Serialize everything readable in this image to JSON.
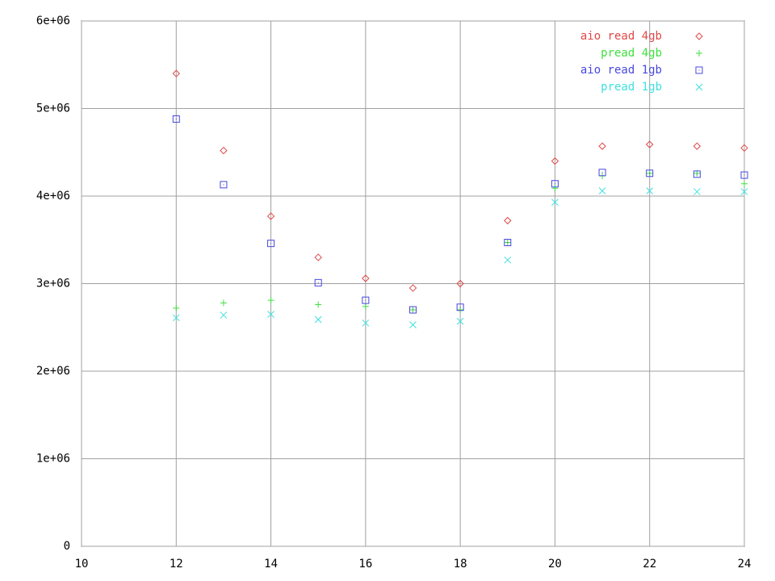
{
  "chart_data": {
    "type": "scatter",
    "x": [
      12,
      13,
      14,
      15,
      16,
      17,
      18,
      19,
      20,
      21,
      22,
      23,
      24
    ],
    "xlim": [
      10,
      24
    ],
    "xticks": [
      10,
      12,
      14,
      16,
      18,
      20,
      22,
      24
    ],
    "ylim": [
      0,
      6000000
    ],
    "yticks": [
      0,
      {
        "value": 1000000,
        "label": "1e+06"
      },
      {
        "value": 2000000,
        "label": "2e+06"
      },
      {
        "value": 3000000,
        "label": "3e+06"
      },
      {
        "value": 4000000,
        "label": "4e+06"
      },
      {
        "value": 5000000,
        "label": "5e+06"
      },
      {
        "value": 6000000,
        "label": "6e+06"
      }
    ],
    "grid": true,
    "legend": "top-right",
    "series": [
      {
        "name": "aio read 4gb",
        "color": "#e04848",
        "marker": "diamond",
        "values": [
          5400000,
          4520000,
          3770000,
          3300000,
          3060000,
          2950000,
          3000000,
          3720000,
          4400000,
          4570000,
          4590000,
          4570000,
          4550000
        ]
      },
      {
        "name": "pread 4gb",
        "color": "#40e040",
        "marker": "plus",
        "values": [
          2720000,
          2780000,
          2810000,
          2760000,
          2740000,
          2700000,
          2700000,
          3470000,
          4090000,
          4230000,
          4260000,
          4260000,
          4140000
        ]
      },
      {
        "name": "aio read 1gb",
        "color": "#4848e0",
        "marker": "square",
        "values": [
          4880000,
          4130000,
          3460000,
          3010000,
          2810000,
          2700000,
          2730000,
          3470000,
          4140000,
          4270000,
          4260000,
          4250000,
          4240000
        ]
      },
      {
        "name": "pread 1gb",
        "color": "#40e0e0",
        "marker": "cross",
        "values": [
          2610000,
          2640000,
          2650000,
          2590000,
          2550000,
          2530000,
          2570000,
          3270000,
          3930000,
          4060000,
          4060000,
          4050000,
          4050000
        ]
      }
    ]
  }
}
